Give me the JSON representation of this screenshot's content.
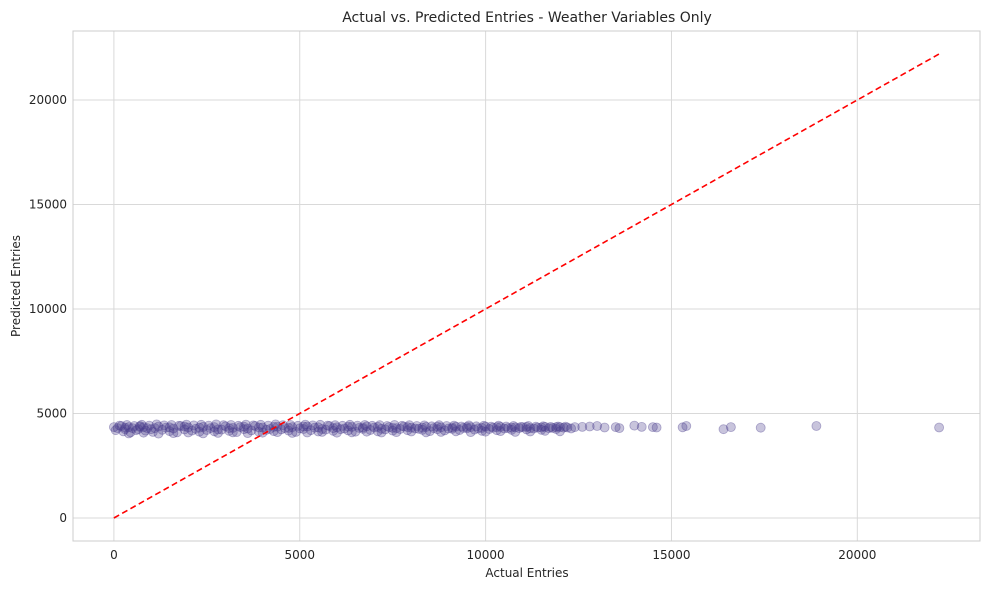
{
  "chart_data": {
    "type": "scatter",
    "title": "Actual vs. Predicted Entries - Weather Variables Only",
    "xlabel": "Actual Entries",
    "ylabel": "Predicted Entries",
    "xlim": [
      -1100,
      23300
    ],
    "ylim": [
      -1100,
      23300
    ],
    "xticks": [
      0,
      5000,
      10000,
      15000,
      20000
    ],
    "yticks": [
      0,
      5000,
      10000,
      15000,
      20000
    ],
    "xtick_labels": [
      "0",
      "5000",
      "10000",
      "15000",
      "20000"
    ],
    "ytick_labels": [
      "0",
      "5000",
      "10000",
      "15000",
      "20000"
    ],
    "grid": true,
    "marker_color": "#483d8b",
    "marker_alpha": 0.3,
    "reference_line": {
      "style": "dashed",
      "color": "#ff0000",
      "x": [
        0,
        22200
      ],
      "y": [
        0,
        22200
      ]
    },
    "series": [
      {
        "x": [
          0,
          100,
          200,
          300,
          400,
          500,
          600,
          700,
          800,
          900,
          1000,
          1200,
          1400,
          1600,
          1800,
          2000,
          2200,
          2400,
          2600,
          2800,
          3000,
          3200,
          3400,
          3600,
          3800,
          4000,
          4200,
          4400,
          4600,
          4800,
          5000,
          5200,
          5400,
          5600,
          5800,
          6000,
          6200,
          6400,
          6600,
          6800,
          7000,
          7200,
          7400,
          7600,
          7800,
          8000,
          8200,
          8400,
          8600,
          8800,
          9000,
          9200,
          9400,
          9600,
          9800,
          10000,
          10200,
          10400,
          10600,
          10800,
          11000,
          11200,
          11400,
          11600,
          11800,
          12000,
          12200,
          12400,
          12600,
          12800,
          13000,
          13200,
          13500,
          13600,
          14000,
          14200,
          14500,
          14600,
          15300,
          15400,
          16400,
          16600,
          17400,
          18900,
          22200,
          50,
          250,
          450,
          650,
          850,
          1050,
          1300,
          1500,
          1700,
          1900,
          2100,
          2300,
          2500,
          2700,
          2900,
          3100,
          3300,
          3500,
          3700,
          3900,
          4100,
          4300,
          4500,
          4700,
          4900,
          5100,
          5300,
          5500,
          5700,
          5900,
          6100,
          6300,
          6500,
          6700,
          6900,
          7100,
          7300,
          7500,
          7700,
          7900,
          8100,
          8300,
          8500,
          8700,
          8900,
          9100,
          9300,
          9500,
          9700,
          9900,
          10100,
          10300,
          10500,
          10700,
          10900,
          11100,
          11300,
          11500,
          11700,
          11900,
          12100,
          12300,
          150,
          350,
          550,
          750,
          950,
          1150,
          1350,
          1550,
          1750,
          1950,
          2150,
          2350,
          2550,
          2750,
          2950,
          3150,
          3350,
          3550,
          3750,
          3950,
          4150,
          4350,
          4550,
          4750,
          4950,
          5150,
          5350,
          5550,
          5750,
          5950,
          6150,
          6350,
          6550,
          6750,
          6950,
          7150,
          7350,
          7550,
          7750,
          7950,
          8150,
          8350,
          8550,
          8750,
          8950,
          9150,
          9350,
          9550,
          9750,
          9950,
          10150,
          10350,
          10550,
          10750,
          10950,
          11150,
          11350,
          11550,
          11750,
          11950,
          12150,
          400,
          800,
          1200,
          1600,
          2000,
          2400,
          2800,
          3200,
          3600,
          4000,
          4400,
          4800,
          5200,
          5600,
          6000,
          6400,
          6800,
          7200,
          7600,
          8000,
          8400,
          8800,
          9200,
          9600,
          10000,
          10400,
          10800,
          11200,
          11600,
          12000,
          300,
          700,
          1100,
          1500,
          1900,
          2300,
          2700,
          3100,
          3500,
          3900,
          4300,
          4700,
          5100,
          5500,
          5900,
          6300,
          6700,
          7100,
          7500,
          7900,
          8300,
          8700,
          9100,
          9500,
          9900,
          10300,
          10700,
          11100,
          11500,
          11900
        ],
        "y": [
          4350,
          4300,
          4400,
          4250,
          4350,
          4300,
          4200,
          4400,
          4350,
          4300,
          4250,
          4380,
          4320,
          4280,
          4400,
          4330,
          4270,
          4360,
          4300,
          4240,
          4390,
          4310,
          4350,
          4280,
          4400,
          4330,
          4260,
          4370,
          4300,
          4350,
          4290,
          4380,
          4320,
          4260,
          4400,
          4340,
          4280,
          4360,
          4310,
          4390,
          4330,
          4270,
          4350,
          4300,
          4380,
          4320,
          4270,
          4360,
          4300,
          4340,
          4280,
          4370,
          4310,
          4350,
          4290,
          4380,
          4320,
          4360,
          4300,
          4340,
          4350,
          4300,
          4330,
          4360,
          4310,
          4350,
          4330,
          4350,
          4360,
          4380,
          4400,
          4330,
          4350,
          4300,
          4420,
          4360,
          4350,
          4330,
          4340,
          4400,
          4250,
          4350,
          4320,
          4400,
          4330,
          4200,
          4150,
          4100,
          4250,
          4180,
          4120,
          4220,
          4160,
          4100,
          4240,
          4180,
          4130,
          4210,
          4150,
          4230,
          4170,
          4110,
          4250,
          4190,
          4130,
          4220,
          4160,
          4240,
          4180,
          4120,
          4260,
          4200,
          4140,
          4230,
          4170,
          4250,
          4190,
          4130,
          4270,
          4210,
          4150,
          4240,
          4180,
          4260,
          4200,
          4280,
          4220,
          4160,
          4250,
          4190,
          4270,
          4210,
          4290,
          4230,
          4170,
          4260,
          4200,
          4280,
          4220,
          4300,
          4240,
          4280,
          4220,
          4300,
          4260,
          4320,
          4280,
          4420,
          4450,
          4400,
          4460,
          4420,
          4480,
          4430,
          4450,
          4410,
          4470,
          4430,
          4460,
          4420,
          4480,
          4440,
          4450,
          4410,
          4470,
          4430,
          4460,
          4420,
          4480,
          4440,
          4450,
          4410,
          4470,
          4430,
          4460,
          4420,
          4440,
          4410,
          4460,
          4420,
          4450,
          4410,
          4440,
          4400,
          4450,
          4410,
          4440,
          4400,
          4430,
          4390,
          4440,
          4400,
          4420,
          4380,
          4430,
          4390,
          4410,
          4370,
          4420,
          4380,
          4400,
          4360,
          4400,
          4370,
          4390,
          4360,
          4380,
          4370,
          4050,
          4080,
          4040,
          4060,
          4090,
          4050,
          4070,
          4100,
          4060,
          4080,
          4110,
          4070,
          4090,
          4120,
          4080,
          4100,
          4130,
          4090,
          4110,
          4140,
          4100,
          4120,
          4150,
          4110,
          4130,
          4160,
          4120,
          4140,
          4170,
          4150,
          4320,
          4360,
          4300,
          4340,
          4380,
          4320,
          4350,
          4300,
          4370,
          4330,
          4360,
          4310,
          4380,
          4340,
          4300,
          4370,
          4330,
          4360,
          4310,
          4350,
          4320,
          4370,
          4330,
          4360,
          4310,
          4350,
          4320,
          4360,
          4330,
          4350
        ]
      }
    ]
  }
}
